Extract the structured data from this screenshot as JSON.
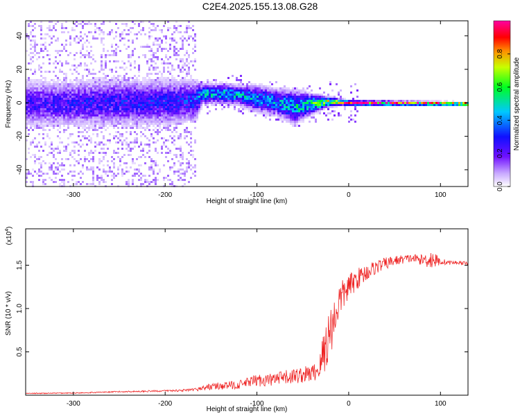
{
  "title": "C2E4.2025.155.13.08.G28",
  "chart_data": [
    {
      "type": "heatmap",
      "xlabel": "Height of straight line (km)",
      "ylabel": "Frequency (Hz)",
      "xlim": [
        -352,
        130
      ],
      "ylim": [
        -50,
        49
      ],
      "xticks": [
        -300,
        -200,
        -100,
        0,
        100
      ],
      "yticks": [
        -40,
        -20,
        0,
        20,
        40
      ],
      "xtick_labels": [
        "-300",
        "-200",
        "-100",
        "0",
        "100"
      ],
      "ytick_labels": [
        "-40",
        "-20",
        "0",
        "20",
        "40"
      ],
      "grid": false,
      "colorbar": {
        "label": "Normalized spectral amplitude",
        "range": [
          0.0,
          1.0
        ],
        "ticks": [
          0.0,
          0.2,
          0.4,
          0.6,
          0.8
        ],
        "tick_labels": [
          "0.0",
          "0.2",
          "0.4",
          "0.6",
          "0.8"
        ],
        "colormap": "rainbow (white → purple → blue → cyan → green → yellow → red → magenta)"
      },
      "ridge": [
        {
          "x": -352,
          "f": 0,
          "spread": 7,
          "amp": 0.22
        },
        {
          "x": -300,
          "f": 0,
          "spread": 7,
          "amp": 0.24
        },
        {
          "x": -250,
          "f": 1,
          "spread": 7,
          "amp": 0.26
        },
        {
          "x": -200,
          "f": 1,
          "spread": 7,
          "amp": 0.26
        },
        {
          "x": -168,
          "f": 2,
          "spread": 6,
          "amp": 0.3
        },
        {
          "x": -160,
          "f": 6,
          "spread": 3,
          "amp": 0.45
        },
        {
          "x": -140,
          "f": 6,
          "spread": 3,
          "amp": 0.45
        },
        {
          "x": -120,
          "f": 5,
          "spread": 3,
          "amp": 0.42
        },
        {
          "x": -100,
          "f": 3,
          "spread": 4,
          "amp": 0.4
        },
        {
          "x": -80,
          "f": 1,
          "spread": 4,
          "amp": 0.4
        },
        {
          "x": -60,
          "f": -2,
          "spread": 5,
          "amp": 0.45
        },
        {
          "x": -40,
          "f": 0,
          "spread": 3,
          "amp": 0.5
        },
        {
          "x": -25,
          "f": 1,
          "spread": 1.5,
          "amp": 0.75
        },
        {
          "x": -10,
          "f": 1,
          "spread": 1,
          "amp": 0.8
        },
        {
          "x": 0,
          "f": 0.5,
          "spread": 0.8,
          "amp": 0.85
        },
        {
          "x": 130,
          "f": 0,
          "spread": 0.6,
          "amp": 1.0
        }
      ]
    },
    {
      "type": "line",
      "xlabel": "Height of straight line (km)",
      "ylabel": "SNR (10 * v/v)",
      "y_multiplier": "(x10",
      "y_multiplier_exp": "4",
      "y_multiplier_close": ")",
      "xlim": [
        -352,
        130
      ],
      "ylim": [
        0,
        1.92
      ],
      "xticks": [
        -300,
        -200,
        -100,
        0,
        100
      ],
      "yticks": [
        0.5,
        1.0,
        1.5
      ],
      "xtick_labels": [
        "-300",
        "-200",
        "-100",
        "0",
        "100"
      ],
      "ytick_labels": [
        "0.5",
        "1.0",
        "1.5"
      ],
      "grid": false,
      "series": [
        {
          "color": "#ee2222",
          "x": [
            -352,
            -300,
            -250,
            -200,
            -170,
            -150,
            -120,
            -100,
            -80,
            -60,
            -40,
            -32,
            -26,
            -20,
            -15,
            -10,
            0,
            10,
            20,
            30,
            40,
            50,
            60,
            70,
            80,
            90,
            100,
            110,
            120,
            130
          ],
          "y": [
            0.02,
            0.025,
            0.04,
            0.05,
            0.06,
            0.1,
            0.12,
            0.17,
            0.18,
            0.22,
            0.25,
            0.3,
            0.55,
            0.75,
            0.9,
            1.1,
            1.25,
            1.35,
            1.42,
            1.48,
            1.52,
            1.55,
            1.57,
            1.58,
            1.56,
            1.57,
            1.54,
            1.53,
            1.53,
            1.52
          ],
          "noise": [
            0.005,
            0.006,
            0.008,
            0.01,
            0.015,
            0.04,
            0.05,
            0.07,
            0.08,
            0.09,
            0.1,
            0.12,
            0.35,
            0.3,
            0.25,
            0.2,
            0.15,
            0.12,
            0.1,
            0.08,
            0.07,
            0.06,
            0.05,
            0.05,
            0.06,
            0.12,
            0.04,
            0.025,
            0.02,
            0.02
          ]
        }
      ]
    }
  ]
}
